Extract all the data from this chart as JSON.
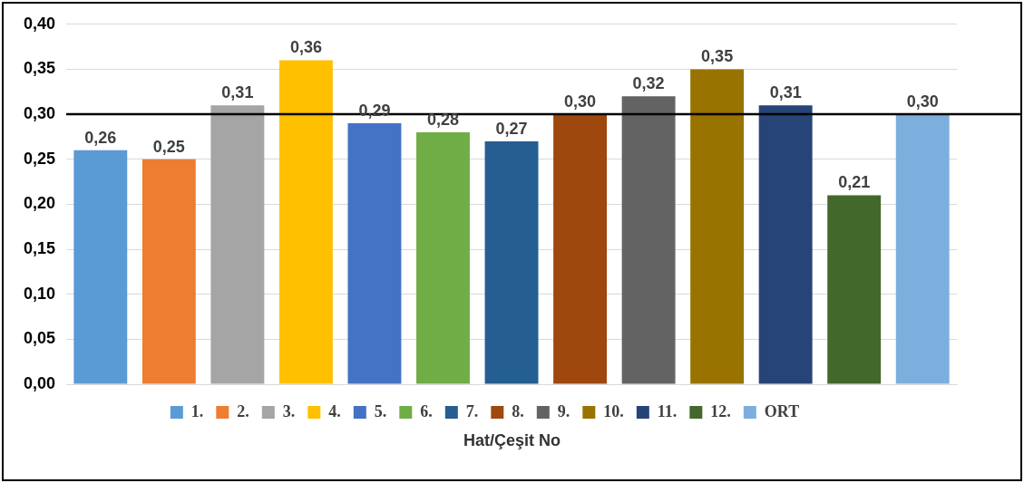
{
  "chart_data": {
    "type": "bar",
    "xlabel": "Hat/Çeşit No",
    "categories": [
      null,
      null,
      null,
      null,
      null,
      null,
      null,
      null,
      null,
      null,
      null,
      null,
      null
    ],
    "series": [
      {
        "name": "1.",
        "color": "#5b9bd5",
        "values": [
          0.26,
          null,
          null,
          null,
          null,
          null,
          null,
          null,
          null,
          null,
          null,
          null,
          null
        ],
        "value_labels": [
          "0,26",
          null,
          null,
          null,
          null,
          null,
          null,
          null,
          null,
          null,
          null,
          null,
          null
        ]
      },
      {
        "name": "2.",
        "color": "#ed7d31",
        "values": [
          null,
          0.25,
          null,
          null,
          null,
          null,
          null,
          null,
          null,
          null,
          null,
          null,
          null
        ],
        "value_labels": [
          null,
          "0,25",
          null,
          null,
          null,
          null,
          null,
          null,
          null,
          null,
          null,
          null,
          null
        ]
      },
      {
        "name": "3.",
        "color": "#a5a5a5",
        "values": [
          null,
          null,
          0.31,
          null,
          null,
          null,
          null,
          null,
          null,
          null,
          null,
          null,
          null
        ],
        "value_labels": [
          null,
          null,
          "0,31",
          null,
          null,
          null,
          null,
          null,
          null,
          null,
          null,
          null,
          null
        ]
      },
      {
        "name": "4.",
        "color": "#ffc000",
        "values": [
          null,
          null,
          null,
          0.36,
          null,
          null,
          null,
          null,
          null,
          null,
          null,
          null,
          null
        ],
        "value_labels": [
          null,
          null,
          null,
          "0,36",
          null,
          null,
          null,
          null,
          null,
          null,
          null,
          null,
          null
        ]
      },
      {
        "name": "5.",
        "color": "#4472c4",
        "values": [
          null,
          null,
          null,
          null,
          0.29,
          null,
          null,
          null,
          null,
          null,
          null,
          null,
          null
        ],
        "value_labels": [
          null,
          null,
          null,
          null,
          "0,29",
          null,
          null,
          null,
          null,
          null,
          null,
          null,
          null
        ]
      },
      {
        "name": "6.",
        "color": "#70ad47",
        "values": [
          null,
          null,
          null,
          null,
          null,
          0.28,
          null,
          null,
          null,
          null,
          null,
          null,
          null
        ],
        "value_labels": [
          null,
          null,
          null,
          null,
          null,
          "0,28",
          null,
          null,
          null,
          null,
          null,
          null,
          null
        ]
      },
      {
        "name": "7.",
        "color": "#255e91",
        "values": [
          null,
          null,
          null,
          null,
          null,
          null,
          0.27,
          null,
          null,
          null,
          null,
          null,
          null
        ],
        "value_labels": [
          null,
          null,
          null,
          null,
          null,
          null,
          "0,27",
          null,
          null,
          null,
          null,
          null,
          null
        ]
      },
      {
        "name": "8.",
        "color": "#9e480e",
        "values": [
          null,
          null,
          null,
          null,
          null,
          null,
          null,
          0.3,
          null,
          null,
          null,
          null,
          null
        ],
        "value_labels": [
          null,
          null,
          null,
          null,
          null,
          null,
          null,
          "0,30",
          null,
          null,
          null,
          null,
          null
        ]
      },
      {
        "name": "9.",
        "color": "#636363",
        "values": [
          null,
          null,
          null,
          null,
          null,
          null,
          null,
          null,
          0.32,
          null,
          null,
          null,
          null
        ],
        "value_labels": [
          null,
          null,
          null,
          null,
          null,
          null,
          null,
          null,
          "0,32",
          null,
          null,
          null,
          null
        ]
      },
      {
        "name": "10.",
        "color": "#997300",
        "values": [
          null,
          null,
          null,
          null,
          null,
          null,
          null,
          null,
          null,
          0.35,
          null,
          null,
          null
        ],
        "value_labels": [
          null,
          null,
          null,
          null,
          null,
          null,
          null,
          null,
          null,
          "0,35",
          null,
          null,
          null
        ]
      },
      {
        "name": "11.",
        "color": "#264478",
        "values": [
          null,
          null,
          null,
          null,
          null,
          null,
          null,
          null,
          null,
          null,
          0.31,
          null,
          null
        ],
        "value_labels": [
          null,
          null,
          null,
          null,
          null,
          null,
          null,
          null,
          null,
          null,
          "0,31",
          null,
          null
        ]
      },
      {
        "name": "12.",
        "color": "#43682b",
        "values": [
          null,
          null,
          null,
          null,
          null,
          null,
          null,
          null,
          null,
          null,
          null,
          0.21,
          null
        ],
        "value_labels": [
          null,
          null,
          null,
          null,
          null,
          null,
          null,
          null,
          null,
          null,
          null,
          "0,21",
          null
        ]
      },
      {
        "name": "ORT",
        "color": "#7cafdd",
        "values": [
          null,
          null,
          null,
          null,
          null,
          null,
          null,
          null,
          null,
          null,
          null,
          null,
          0.3
        ],
        "value_labels": [
          null,
          null,
          null,
          null,
          null,
          null,
          null,
          null,
          null,
          null,
          null,
          null,
          "0,30"
        ]
      }
    ],
    "ylim": [
      0,
      0.4
    ],
    "yticks": [
      {
        "value": 0,
        "label": "0,00"
      },
      {
        "value": 0.05,
        "label": "0,05"
      },
      {
        "value": 0.1,
        "label": "0,10"
      },
      {
        "value": 0.15,
        "label": "0,15"
      },
      {
        "value": 0.2,
        "label": "0,20"
      },
      {
        "value": 0.25,
        "label": "0,25"
      },
      {
        "value": 0.3,
        "label": "0,30"
      },
      {
        "value": 0.35,
        "label": "0,35"
      },
      {
        "value": 0.4,
        "label": "0,40"
      }
    ],
    "ref_lines": [
      {
        "axis": "y",
        "value": 0.3,
        "color": "#000000"
      }
    ],
    "grid": "y",
    "legend": "bottom"
  }
}
